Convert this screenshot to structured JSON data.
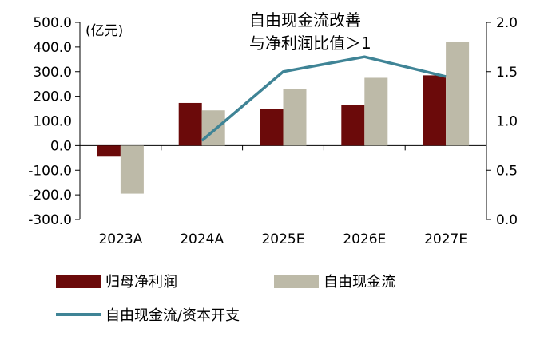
{
  "chart_data": {
    "type": "bar",
    "title": "",
    "unit_label": "(亿元)",
    "annotation": [
      "自由现金流改善",
      "与净利润比值＞1"
    ],
    "categories": [
      "2023A",
      "2024A",
      "2025E",
      "2026E",
      "2027E"
    ],
    "series": [
      {
        "name": "归母净利润",
        "type": "bar",
        "axis": "left",
        "color": "#6b0a0a",
        "values": [
          -45,
          173,
          150,
          165,
          285
        ]
      },
      {
        "name": "自由现金流",
        "type": "bar",
        "axis": "left",
        "color": "#bdbaa8",
        "values": [
          -195,
          143,
          228,
          275,
          420
        ]
      },
      {
        "name": "自由现金流/资本开支",
        "type": "line",
        "axis": "right",
        "color": "#3f8496",
        "values": [
          null,
          0.8,
          1.5,
          1.65,
          1.45
        ]
      }
    ],
    "y_left": {
      "min": -300,
      "max": 500,
      "step": 100,
      "tick_labels": [
        "-300.0",
        "-200.0",
        "-100.0",
        "0.0",
        "100.0",
        "200.0",
        "300.0",
        "400.0",
        "500.0"
      ]
    },
    "y_right": {
      "min": 0,
      "max": 2,
      "step": 0.5,
      "tick_labels": [
        "0.0",
        "0.5",
        "1.0",
        "1.5",
        "2.0"
      ]
    },
    "legend_position": "bottom",
    "grid": false
  }
}
